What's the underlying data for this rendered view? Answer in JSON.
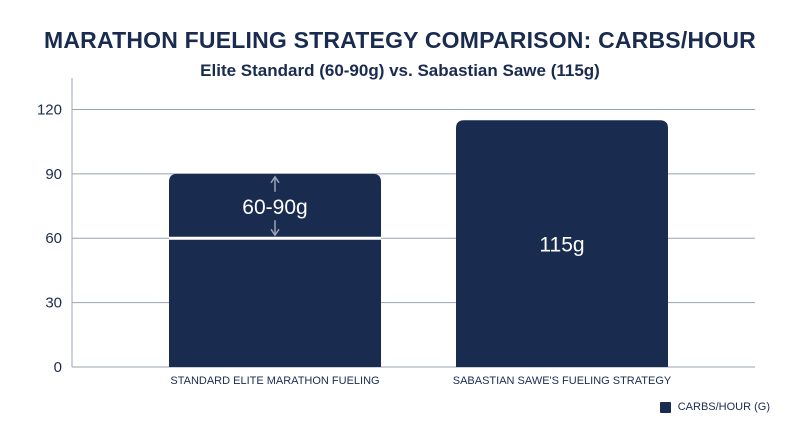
{
  "chart_data": {
    "type": "bar",
    "title": "MARATHON FUELING STRATEGY COMPARISON: CARBS/HOUR",
    "subtitle": "Elite Standard (60-90g) vs. Sabastian Sawe (115g)",
    "categories": [
      "STANDARD ELITE MARATHON FUELING",
      "SABASTIAN SAWE'S FUELING STRATEGY"
    ],
    "series": [
      {
        "name": "CARBS/HOUR (G)",
        "values": [
          90,
          115
        ],
        "range_low": [
          60,
          null
        ],
        "labels": [
          "60-90g",
          "115g"
        ]
      }
    ],
    "ylim": [
      0,
      130
    ],
    "yticks": [
      0,
      30,
      60,
      90,
      120
    ],
    "grid": true,
    "legend_position": "bottom-right",
    "colors": {
      "bar": "#1a2b50",
      "grid": "#9aa3b2",
      "text": "#1a2b50",
      "marker": "#ffffff",
      "arrow": "#9aa3b2"
    }
  }
}
